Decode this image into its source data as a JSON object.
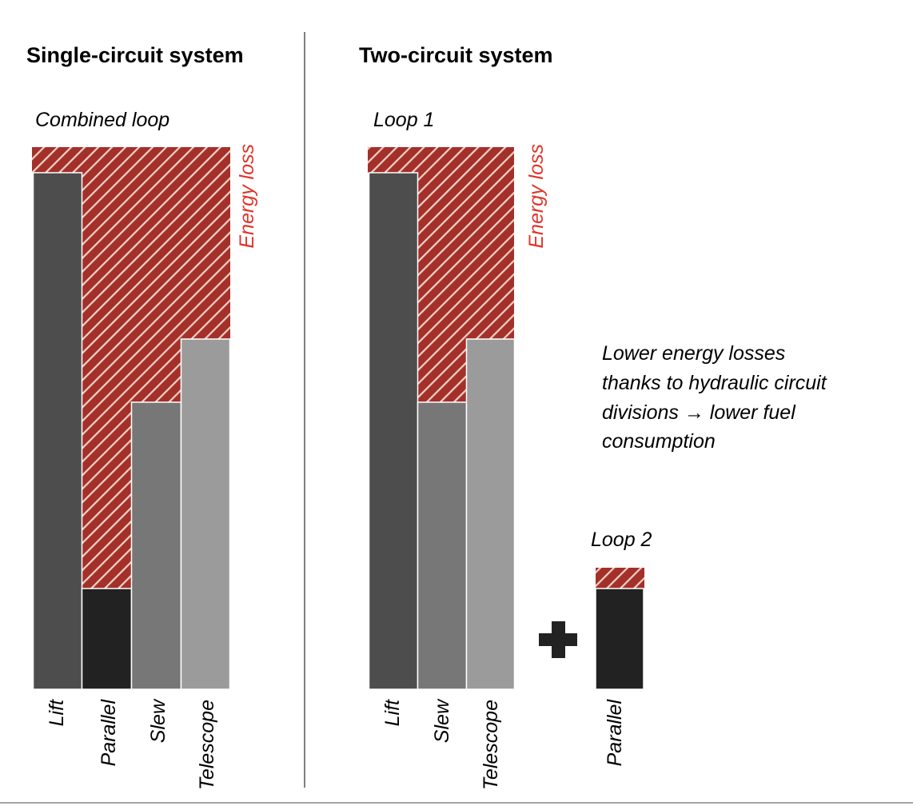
{
  "left": {
    "title": "Single-circuit system",
    "loop_label": "Combined loop",
    "loss_label": "Energy loss",
    "bars": [
      "Lift",
      "Parallel",
      "Slew",
      "Telescope"
    ]
  },
  "right": {
    "title": "Two-circuit system",
    "loop1_label": "Loop 1",
    "loss_label": "Energy loss",
    "bars": [
      "Lift",
      "Slew",
      "Telescope"
    ],
    "loop2_label": "Loop 2",
    "loop2_bars": [
      "Parallel"
    ],
    "note": [
      "Lower energy losses",
      "thanks to hydraulic circuit",
      "divisions → lower fuel",
      "consumption"
    ]
  },
  "colors": {
    "loss": "#a4302a",
    "loss_text": "#e0342a",
    "lift": "#4d4d4d",
    "parallel": "#222222",
    "slew": "#777777",
    "telescope": "#9b9b9b"
  }
}
